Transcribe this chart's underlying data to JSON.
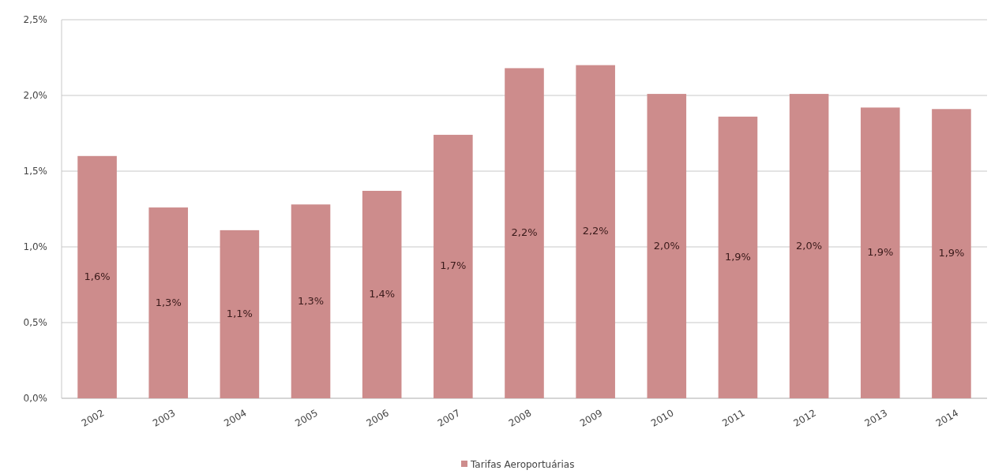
{
  "chart_data": {
    "type": "bar",
    "categories": [
      "2002",
      "2003",
      "2004",
      "2005",
      "2006",
      "2007",
      "2008",
      "2009",
      "2010",
      "2011",
      "2012",
      "2013",
      "2014"
    ],
    "series": [
      {
        "name": "Tarifas Aeroportuárias",
        "color": "#cd8c8c",
        "values": [
          1.6,
          1.26,
          1.11,
          1.28,
          1.37,
          1.74,
          2.18,
          2.2,
          2.01,
          1.86,
          2.01,
          1.92,
          1.91
        ],
        "value_labels": [
          "1,6%",
          "1,3%",
          "1,1%",
          "1,3%",
          "1,4%",
          "1,7%",
          "2,2%",
          "2,2%",
          "2,0%",
          "1,9%",
          "2,0%",
          "1,9%",
          "1,9%"
        ]
      }
    ],
    "ylim": [
      0,
      2.5
    ],
    "yticks": [
      {
        "value": 0,
        "label": "0,0%"
      },
      {
        "value": 0.5,
        "label": "0,5%"
      },
      {
        "value": 1,
        "label": "1,0%"
      },
      {
        "value": 1.5,
        "label": "1,5%"
      },
      {
        "value": 2,
        "label": "2,0%"
      },
      {
        "value": 2.5,
        "label": "2,5%"
      }
    ],
    "grid": "y",
    "legend": "bottom"
  }
}
